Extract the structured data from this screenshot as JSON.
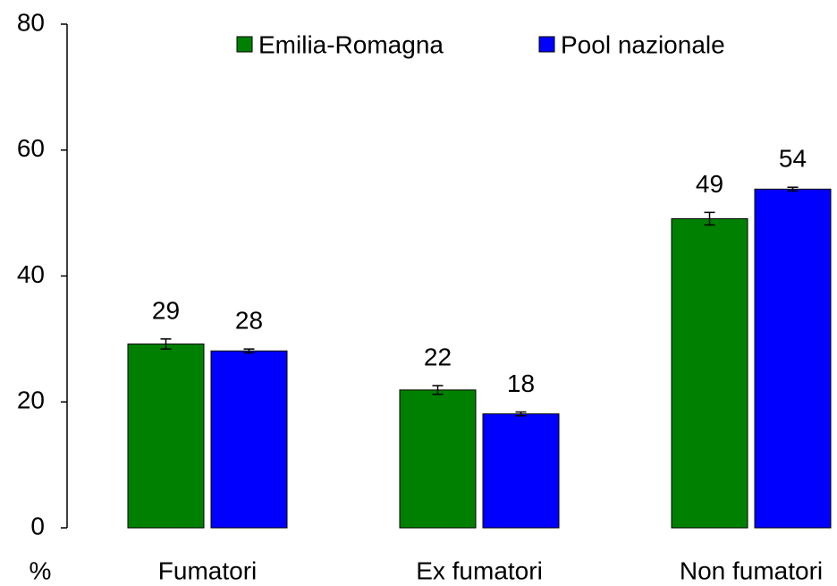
{
  "chart_data": {
    "type": "bar",
    "y_label": "%",
    "categories": [
      "Fumatori",
      "Ex fumatori",
      "Non fumatori"
    ],
    "series": [
      {
        "name": "Emilia-Romagna",
        "color": "#008000",
        "values": [
          29.2,
          21.9,
          49.1
        ],
        "value_labels": [
          "29",
          "22",
          "49"
        ],
        "errors": [
          0.8,
          0.7,
          1.0
        ]
      },
      {
        "name": "Pool nazionale",
        "color": "#0000ff",
        "values": [
          28.1,
          18.1,
          53.8
        ],
        "value_labels": [
          "28",
          "18",
          "54"
        ],
        "errors": [
          0.3,
          0.3,
          0.3
        ]
      }
    ],
    "ylim": [
      0,
      80
    ],
    "yticks": [
      0,
      20,
      40,
      60,
      80
    ],
    "grid": false,
    "legend": "top"
  }
}
